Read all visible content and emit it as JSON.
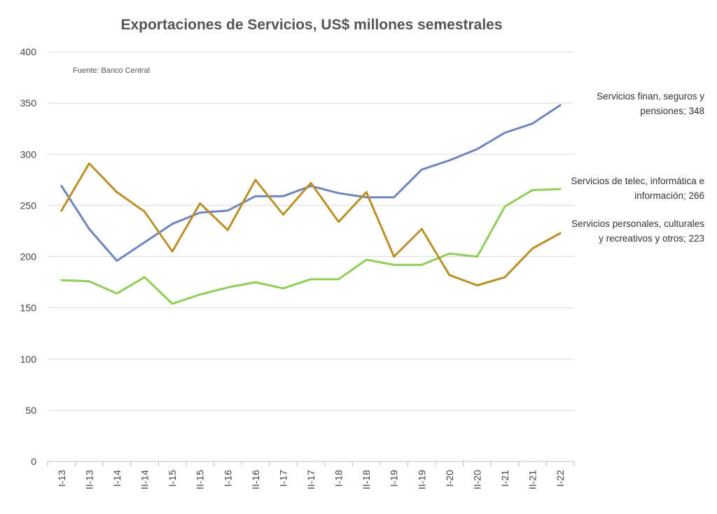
{
  "chart_data": {
    "type": "line",
    "title": "Exportaciones de Servicios, US$ millones semestrales",
    "source_note": "Fuente: Banco Central",
    "xlabel": "",
    "ylabel": "",
    "ylim": [
      0,
      400
    ],
    "yticks": [
      0,
      50,
      100,
      150,
      200,
      250,
      300,
      350,
      400
    ],
    "grid": true,
    "categories": [
      "I-13",
      "II-13",
      "I-14",
      "II-14",
      "I-15",
      "II-15",
      "I-16",
      "II-16",
      "I-17",
      "II-17",
      "I-18",
      "II-18",
      "I-19",
      "II-19",
      "I-20",
      "II-20",
      "I-21",
      "II-21",
      "I-22"
    ],
    "series": [
      {
        "name": "Servicios finan, seguros y pensiones",
        "color": "#6f86bd",
        "end_label": [
          "Servicios finan, seguros y",
          "pensiones; 348"
        ],
        "values": [
          269,
          227,
          196,
          214,
          232,
          243,
          245,
          259,
          259,
          269,
          262,
          258,
          258,
          285,
          294,
          305,
          321,
          330,
          348
        ]
      },
      {
        "name": "Servicios de telec, informática e información",
        "color": "#8fcf59",
        "end_label": [
          "Servicios de telec, informática e",
          "información; 266"
        ],
        "values": [
          177,
          176,
          164,
          180,
          154,
          163,
          170,
          175,
          169,
          178,
          178,
          197,
          192,
          192,
          203,
          200,
          249,
          265,
          266
        ]
      },
      {
        "name": "Servicios personales, culturales y recreativos y otros",
        "color": "#b99128",
        "end_label": [
          "Servicios personales, culturales",
          "y recreativos y otros; 223"
        ],
        "values": [
          245,
          291,
          263,
          244,
          205,
          252,
          226,
          275,
          241,
          272,
          234,
          263,
          200,
          227,
          182,
          172,
          180,
          208,
          223
        ]
      }
    ]
  }
}
